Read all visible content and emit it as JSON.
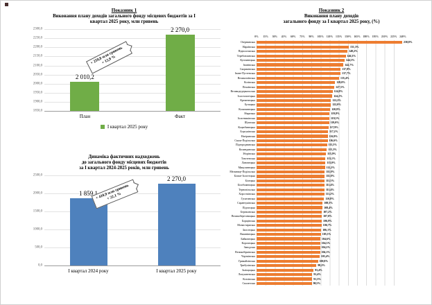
{
  "chart_data": [
    {
      "type": "bar",
      "heading": "Показник 1",
      "title_lines": [
        "Виконання плану доходів загального фонду місцевих бюджетів за І",
        "квартал 2025 року, млн гривень"
      ],
      "categories": [
        "План",
        "Факт"
      ],
      "values": [
        2010.2,
        2270.0
      ],
      "value_labels": [
        "2 010,2",
        "2 270,0"
      ],
      "ylim": [
        1850,
        2300
      ],
      "yticks": [
        "2300,0",
        "2250,0",
        "2200,0",
        "2150,0",
        "2100,0",
        "2050,0",
        "2000,0",
        "1950,0",
        "1900,0",
        "1850,0"
      ],
      "bar_color": "#70AD47",
      "grid": true,
      "legend_position": "bottom",
      "annotation_lines": [
        "+ 259,8 млн гривень",
        "+ 12,9 %"
      ],
      "legend": [
        "І квартал 2025 року"
      ]
    },
    {
      "type": "bar",
      "heading": null,
      "title_lines": [
        "Динаміка фактичних надходжень",
        "до загального фонду місцевих бюджетів",
        "за І квартал 2024-2025 років, млн гривень"
      ],
      "categories": [
        "І квартал 2024 року",
        "І квартал 2025 року"
      ],
      "values": [
        1859.1,
        2270.0
      ],
      "value_labels": [
        "1 859,1",
        "2 270,0"
      ],
      "ylim": [
        0,
        2500
      ],
      "yticks": [
        "2500,0",
        "2000,0",
        "1500,0",
        "1000,0",
        "500,0",
        "0,0"
      ],
      "bar_color": "#4E81BD",
      "grid": true,
      "annotation_lines": [
        "+ 410,9 млн гривень",
        "+ 22,1 %"
      ]
    },
    {
      "type": "horizontal-bar",
      "heading": "Показник 2",
      "title_lines": [
        "Виконання плану доходів",
        "загального фонду за І квартал 2025 року, (%)"
      ],
      "xlim": [
        0,
        240
      ],
      "xticks": [
        "0%",
        "15%",
        "30%",
        "45%",
        "60%",
        "75%",
        "90%",
        "105%",
        "120%",
        "135%",
        "150%",
        "165%",
        "180%",
        "195%",
        "210%",
        "225%",
        "240%"
      ],
      "bar_color": "#ED7D31",
      "grid": true,
      "rows": [
        {
          "name": "Озернянська",
          "value": 238.8,
          "label": "238,8%"
        },
        {
          "name": "Нараївська",
          "value": 151.3,
          "label": "151,3%"
        },
        {
          "name": "Підволочиська",
          "value": 149.2,
          "label": "149,2%"
        },
        {
          "name": "Теребовлянська",
          "value": 146.3,
          "label": "146,3%"
        },
        {
          "name": "Купчинецька",
          "value": 144.3,
          "label": "144,3%"
        },
        {
          "name": "Іванівська",
          "value": 142.7,
          "label": "142,7%"
        },
        {
          "name": "Скориківська",
          "value": 137.8,
          "label": "137,8%"
        },
        {
          "name": "Іване-Пустенська",
          "value": 137.7,
          "label": "137,7%"
        },
        {
          "name": "Великогаївська",
          "value": 135.4,
          "label": "135,4%"
        },
        {
          "name": "Козівська",
          "value": 129.0,
          "label": "129,0%"
        },
        {
          "name": "Почаївська",
          "value": 127.5,
          "label": "127,5%"
        },
        {
          "name": "Великодедеркальська",
          "value": 124.8,
          "label": "124,8%"
        },
        {
          "name": "Золотопотіцька",
          "value": 124.2,
          "label": "124,2%"
        },
        {
          "name": "Кременецька",
          "value": 122.2,
          "label": "122,2%"
        },
        {
          "name": "Бучацька",
          "value": 122.0,
          "label": "122,0%"
        },
        {
          "name": "Копичинецька",
          "value": 120.8,
          "label": "120,8%"
        },
        {
          "name": "Збаразька",
          "value": 119.8,
          "label": "119,8%"
        },
        {
          "name": "Золотниківська",
          "value": 119.5,
          "label": "119,5%"
        },
        {
          "name": "Шумська",
          "value": 119.0,
          "label": "119,0%"
        },
        {
          "name": "Коцюбинецька",
          "value": 117.9,
          "label": "117,9%"
        },
        {
          "name": "Борсуківська",
          "value": 117.2,
          "label": "117,2%"
        },
        {
          "name": "Нагірянська",
          "value": 116.9,
          "label": "116,9%"
        },
        {
          "name": "Скала-Подільська",
          "value": 116.6,
          "label": "116,6%"
        },
        {
          "name": "Підгороднянська",
          "value": 115.5,
          "label": "115,5%"
        },
        {
          "name": "Колиндянська",
          "value": 115.3,
          "label": "115,3%"
        },
        {
          "name": "Зборівська",
          "value": 113.9,
          "label": "113,9%"
        },
        {
          "name": "Товстенська",
          "value": 113.1,
          "label": "113,1%"
        },
        {
          "name": "Лановецька",
          "value": 113.0,
          "label": "113,0%"
        },
        {
          "name": "Микулинецька",
          "value": 112.2,
          "label": "112,2%"
        },
        {
          "name": "Мельнице-Подільська",
          "value": 111.8,
          "label": "111,8%"
        },
        {
          "name": "Більче-Золотецька",
          "value": 111.8,
          "label": "111,8%"
        },
        {
          "name": "Білецька",
          "value": 111.5,
          "label": "111,5%"
        },
        {
          "name": "Білобожницька",
          "value": 111.4,
          "label": "111,4%"
        },
        {
          "name": "Тернопільська",
          "value": 111.4,
          "label": "111,4%"
        },
        {
          "name": "Хоростківська",
          "value": 111.2,
          "label": "111,2%"
        },
        {
          "name": "Гусятинська",
          "value": 110.8,
          "label": "110,8%"
        },
        {
          "name": "Саранчуківська",
          "value": 108.5,
          "label": "108,5%"
        },
        {
          "name": "Підгаєцька",
          "value": 108.4,
          "label": "108,4%"
        },
        {
          "name": "Бережанська",
          "value": 107.2,
          "label": "107,2%"
        },
        {
          "name": "Великоберезовицька",
          "value": 107.0,
          "label": "107,0%"
        },
        {
          "name": "Борщівська",
          "value": 106.9,
          "label": "106,9%"
        },
        {
          "name": "Монастириська",
          "value": 106.7,
          "label": "106,7%"
        },
        {
          "name": "Залозецька",
          "value": 106.1,
          "label": "106,1%"
        },
        {
          "name": "Вишнівецька",
          "value": 105.5,
          "label": "105,5%"
        },
        {
          "name": "Байковецька",
          "value": 104.6,
          "label": "104,6%"
        },
        {
          "name": "Коропецька",
          "value": 104.3,
          "label": "104,3%"
        },
        {
          "name": "Заводська",
          "value": 104.2,
          "label": "104,2%"
        },
        {
          "name": "Великобірківська",
          "value": 104.1,
          "label": "104,1%"
        },
        {
          "name": "Чортківська",
          "value": 103.4,
          "label": "103,4%"
        },
        {
          "name": "Гримайлівська",
          "value": 100.8,
          "label": "100,8%"
        },
        {
          "name": "Трибухівська",
          "value": 98.2,
          "label": "98,2%"
        },
        {
          "name": "Заліщицька",
          "value": 93.4,
          "label": "93,4%"
        },
        {
          "name": "Лопушненська",
          "value": 91.4,
          "label": "91,4%"
        },
        {
          "name": "Козлівська",
          "value": 91.3,
          "label": "91,3%"
        },
        {
          "name": "Скалатська",
          "value": 90.5,
          "label": "90,5%"
        }
      ]
    }
  ]
}
